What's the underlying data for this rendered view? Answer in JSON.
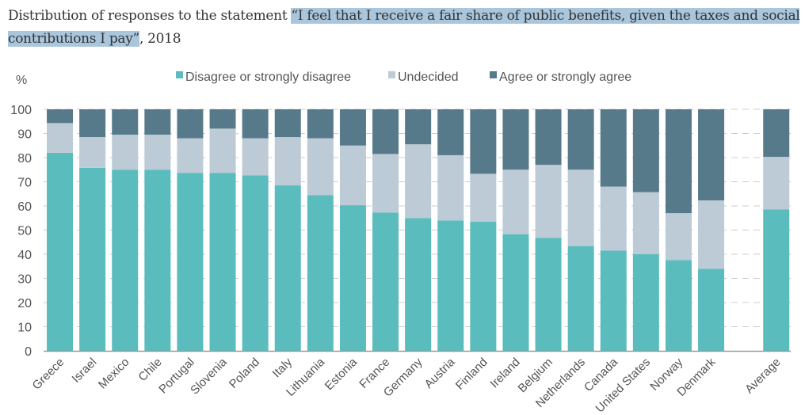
{
  "title": {
    "prefix": "Distribution of responses to the statement ",
    "highlighted": "“I feel that I receive a fair share of public benefits, given the taxes and social contributions I pay”",
    "suffix": ", 2018",
    "highlight_color": "#a9c6dd"
  },
  "chart_data": {
    "type": "bar",
    "stacked": true,
    "ylabel": "%",
    "ylim": [
      0,
      100
    ],
    "yticks": [
      0,
      10,
      20,
      30,
      40,
      50,
      60,
      70,
      80,
      90,
      100
    ],
    "grid": "horizontal dashed",
    "legend_position": "top",
    "categories": [
      "Greece",
      "Israel",
      "Mexico",
      "Chile",
      "Portugal",
      "Slovenia",
      "Poland",
      "Italy",
      "Lithuania",
      "Estonia",
      "France",
      "Germany",
      "Austria",
      "Finland",
      "Ireland",
      "Belgium",
      "Netherlands",
      "Canada",
      "United States",
      "Norway",
      "Denmark",
      "Average"
    ],
    "series": [
      {
        "name": "Disagree or strongly disagree",
        "color": "#5bbcbd",
        "values": [
          82,
          75.8,
          75,
          75,
          73.7,
          73.7,
          72.7,
          68.5,
          64.5,
          60.3,
          57.3,
          55,
          54,
          53.5,
          48.3,
          46.8,
          43.4,
          41.5,
          40,
          37.6,
          34,
          58.6
        ]
      },
      {
        "name": "Undecided",
        "color": "#bccbd6",
        "values": [
          12.3,
          12.7,
          14.5,
          14.5,
          14.3,
          18.3,
          15.3,
          20,
          23.5,
          24.7,
          24.2,
          30.5,
          27,
          19.8,
          26.7,
          30.2,
          31.6,
          26.5,
          25.7,
          19.4,
          28.3,
          21.7
        ]
      },
      {
        "name": "Agree or strongly agree",
        "color": "#577a8a",
        "values": [
          5.7,
          11.5,
          10.5,
          10.5,
          12,
          8,
          12,
          11.5,
          12,
          15,
          18.5,
          14.5,
          19,
          26.7,
          25,
          23,
          25,
          32,
          34.3,
          43,
          37.7,
          19.7
        ]
      }
    ]
  }
}
